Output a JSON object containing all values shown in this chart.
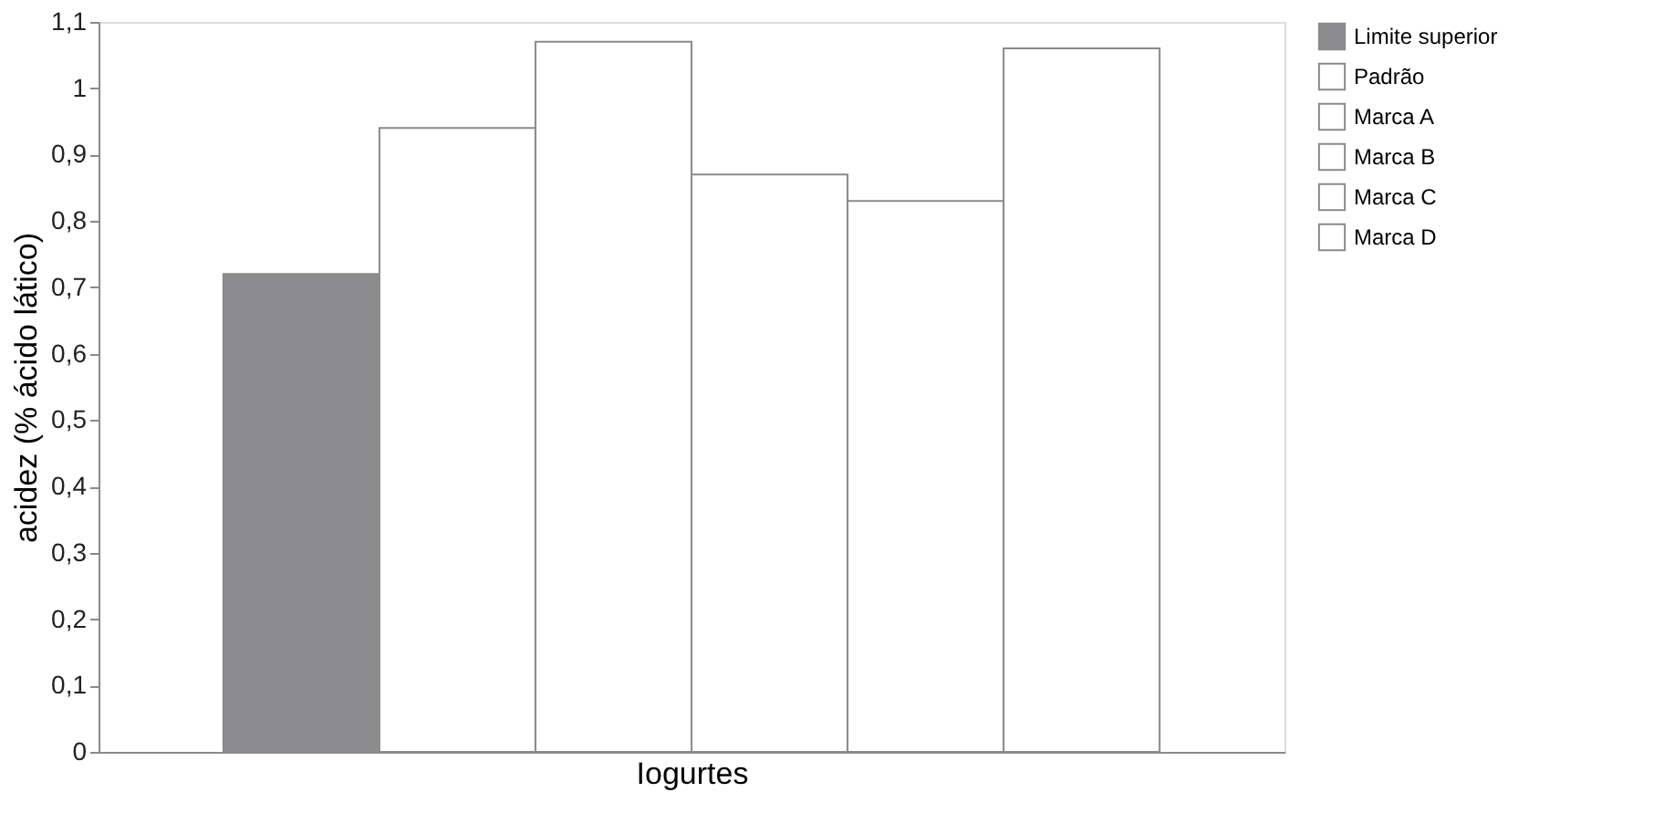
{
  "chart_data": {
    "type": "bar",
    "xlabel": "Iogurtes",
    "ylabel": "acidez (% ácido lático)",
    "categories": [
      null
    ],
    "series": [
      {
        "name": "Limite superior",
        "color": "#8c8c8e",
        "values": [
          0.72
        ]
      },
      {
        "name": "Padrão",
        "color": "#ffffff",
        "values": [
          0.94
        ]
      },
      {
        "name": "Marca A",
        "color": "#ffffff",
        "values": [
          1.07
        ]
      },
      {
        "name": "Marca B",
        "color": "#ffffff",
        "values": [
          0.87
        ]
      },
      {
        "name": "Marca C",
        "color": "#ffffff",
        "values": [
          0.83
        ]
      },
      {
        "name": "Marca D",
        "color": "#ffffff",
        "values": [
          1.06
        ]
      }
    ],
    "ylim": [
      0,
      1.1
    ],
    "yticks": [
      0,
      {
        "value": 0.1,
        "label": "0,1"
      },
      {
        "value": 0.2,
        "label": "0,2"
      },
      {
        "value": 0.3,
        "label": "0,3"
      },
      {
        "value": 0.4,
        "label": "0,4"
      },
      {
        "value": 0.5,
        "label": "0,5"
      },
      {
        "value": 0.6,
        "label": "0,6"
      },
      {
        "value": 0.7,
        "label": "0,7"
      },
      {
        "value": 0.8,
        "label": "0,8"
      },
      {
        "value": 0.9,
        "label": "0,9"
      },
      1,
      {
        "value": 1.1,
        "label": "1,1"
      }
    ],
    "grid": false,
    "legend": "right"
  }
}
